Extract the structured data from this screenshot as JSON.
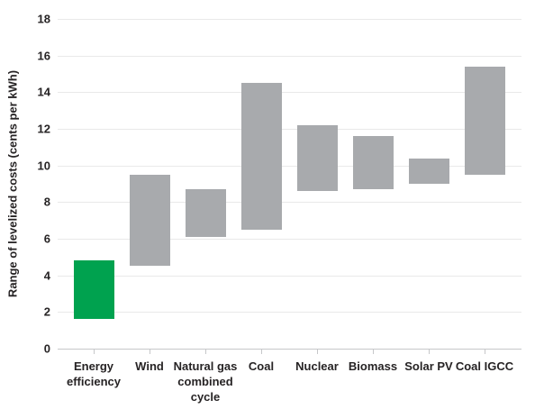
{
  "chart_data": {
    "type": "bar",
    "subtype": "floating-range-columns",
    "title": "",
    "xlabel": "",
    "ylabel": "Range of levelized costs (cents per kWh)",
    "ylim": [
      0,
      18
    ],
    "ytick_step": 2,
    "grid": true,
    "legend": "none",
    "categories": [
      "Energy efficiency",
      "Wind",
      "Natural gas combined cycle",
      "Coal",
      "Nuclear",
      "Biomass",
      "Solar PV",
      "Coal IGCC"
    ],
    "category_label_lines": [
      [
        "Energy",
        "efficiency"
      ],
      [
        "Wind"
      ],
      [
        "Natural gas",
        "combined",
        "cycle"
      ],
      [
        "Coal"
      ],
      [
        "Nuclear"
      ],
      [
        "Biomass"
      ],
      [
        "Solar PV"
      ],
      [
        "Coal IGCC"
      ]
    ],
    "series": [
      {
        "name": "Range of levelized costs (cents per kWh)",
        "ranges": [
          [
            1.6,
            4.8
          ],
          [
            4.5,
            9.5
          ],
          [
            6.1,
            8.7
          ],
          [
            6.5,
            14.5
          ],
          [
            8.6,
            12.2
          ],
          [
            8.7,
            11.6
          ],
          [
            9.0,
            10.4
          ],
          [
            9.5,
            15.4
          ]
        ]
      }
    ],
    "highlight_index": 0,
    "colors": {
      "highlight_bar": "#00a24f",
      "bar": "#a8aaad",
      "gridline": "#e9e9e9",
      "axis_line": "#c6c7c9",
      "text": "#262324"
    }
  }
}
